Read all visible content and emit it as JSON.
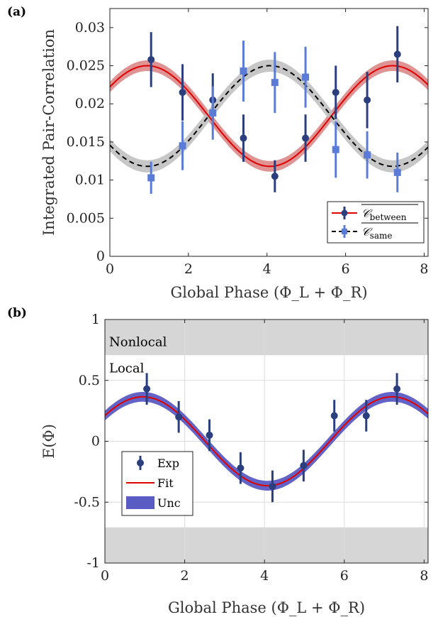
{
  "chart_data": [
    {
      "panel_label": "(a)",
      "type": "scatter",
      "xlabel": "Global Phase (Φ_L + Φ_R)",
      "ylabel": "Integrated Pair-Correlation",
      "xlim": [
        0,
        8.1
      ],
      "ylim": [
        0,
        0.0325
      ],
      "xticks": [
        0,
        2,
        4,
        6,
        8
      ],
      "yticks": [
        0,
        0.005,
        0.01,
        0.015,
        0.02,
        0.025,
        0.03
      ],
      "ytick_labels": [
        "0",
        "0.005",
        "0.01",
        "0.015",
        "0.02",
        "0.025",
        "0.03"
      ],
      "grid": false,
      "legend_position": "bottom-right",
      "series": [
        {
          "name_main": "𝒞",
          "name_sub": "between",
          "color": "#2b3f7e",
          "marker": "circle",
          "x": [
            1.05,
            1.85,
            2.62,
            3.4,
            4.2,
            4.98,
            5.75,
            6.55,
            7.32
          ],
          "y": [
            0.0258,
            0.0215,
            0.0205,
            0.0155,
            0.0105,
            0.0155,
            0.0215,
            0.0205,
            0.0265
          ],
          "err": [
            0.0036,
            0.0037,
            0.0035,
            0.0031,
            0.0021,
            0.0031,
            0.0035,
            0.0037,
            0.0037
          ],
          "fit": {
            "color": "#e00000",
            "style": "solid",
            "band_color": "#d98080",
            "band_halfwidth": 0.0007,
            "A": 0.0184,
            "B": 0.0066,
            "x0": 0.95
          }
        },
        {
          "name_main": "𝒞",
          "name_sub": "same",
          "color": "#5b7cd6",
          "marker": "square",
          "x": [
            1.05,
            1.85,
            2.62,
            3.4,
            4.2,
            4.98,
            5.75,
            6.55,
            7.32
          ],
          "y": [
            0.0103,
            0.0145,
            0.0188,
            0.0243,
            0.0228,
            0.0235,
            0.014,
            0.0133,
            0.011
          ],
          "err": [
            0.0021,
            0.0032,
            0.0035,
            0.004,
            0.004,
            0.004,
            0.0037,
            0.0031,
            0.0026
          ],
          "fit": {
            "color": "#000000",
            "style": "dashed",
            "band_color": "#bdbdbd",
            "band_halfwidth": 0.0008,
            "A": 0.0184,
            "B": -0.0066,
            "x0": 0.95
          }
        }
      ]
    },
    {
      "panel_label": "(b)",
      "type": "scatter",
      "xlabel": "Global Phase (Φ_L + Φ_R)",
      "ylabel": "E(Φ)",
      "xlim": [
        0,
        8.1
      ],
      "ylim": [
        -1,
        1
      ],
      "xticks": [
        0,
        2,
        4,
        6,
        8
      ],
      "yticks": [
        -1,
        -0.5,
        0,
        0.5,
        1
      ],
      "ytick_labels": [
        "-1",
        "-0.5",
        "0",
        "0.5",
        "1"
      ],
      "grid": true,
      "legend_position": "bottom-left",
      "regions": [
        {
          "label": "Nonlocal",
          "y_from": 0.707,
          "y_to": 1,
          "color": "#d6d6d6"
        },
        {
          "label": "",
          "y_from": -1,
          "y_to": -0.707,
          "color": "#d6d6d6"
        }
      ],
      "local_label": "Local",
      "series": [
        {
          "name": "Exp",
          "color": "#2b3f7e",
          "marker": "circle",
          "x": [
            1.05,
            1.85,
            2.62,
            3.4,
            4.2,
            4.98,
            5.75,
            6.55,
            7.32
          ],
          "y": [
            0.43,
            0.2,
            0.05,
            -0.22,
            -0.37,
            -0.2,
            0.21,
            0.21,
            0.43
          ],
          "err": [
            0.13,
            0.13,
            0.13,
            0.13,
            0.13,
            0.13,
            0.13,
            0.13,
            0.13
          ]
        }
      ],
      "fit": {
        "name": "Fit",
        "color": "#e00000",
        "A": 0.0,
        "B": 0.365,
        "x0": 0.95
      },
      "uncertainty": {
        "name": "Unc",
        "color": "#5b5bc4",
        "halfwidth": 0.04
      }
    }
  ]
}
